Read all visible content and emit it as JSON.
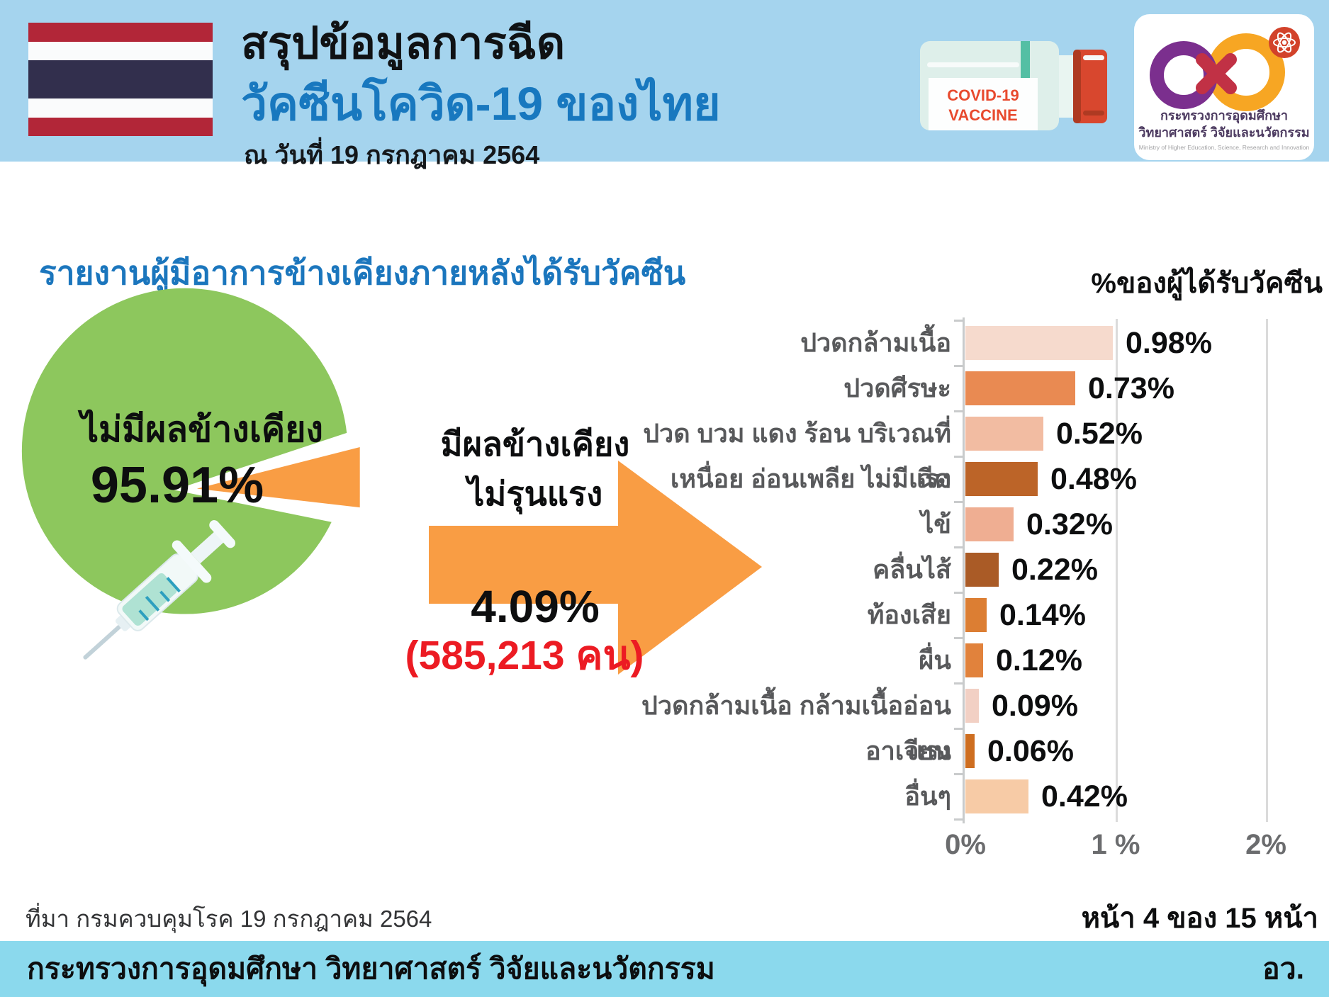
{
  "header": {
    "title_line1": "สรุปข้อมูลการฉีด",
    "title_line2": "วัคซีนโควิด-19 ของไทย",
    "date_line": "ณ วันที่ 19 กรกฎาคม 2564",
    "vial_label_line1": "COVID-19",
    "vial_label_line2": "VACCINE",
    "logo": {
      "thai_line1": "กระทรวงการอุดมศึกษา",
      "thai_line2": "วิทยาศาสตร์ วิจัยและนวัตกรรม",
      "english_line": "Ministry of Higher Education, Science, Research and Innovation"
    }
  },
  "main": {
    "section_title": "รายงานผู้มีอาการข้างเคียงภายหลังได้รับวัคซีน",
    "pie_block": {
      "no_side_effect_label": "ไม่มีผลข้างเคียง",
      "no_side_effect_value": "95.91%",
      "side_effect_label_line1": "มีผลข้างเคียง",
      "side_effect_label_line2": "ไม่รุนแรง",
      "side_effect_value": "4.09%",
      "side_effect_count": "(585,213 คน)"
    }
  },
  "chart_data": [
    {
      "type": "pie",
      "labels": [
        "ไม่มีผลข้างเคียง",
        "มีผลข้างเคียง ไม่รุนแรง"
      ],
      "values": [
        95.91,
        4.09
      ],
      "value_labels": [
        "95.91%",
        "4.09%"
      ],
      "annotation": "(585,213 คน)",
      "colors": [
        "#8DC75D",
        "#F99D44"
      ]
    },
    {
      "type": "bar",
      "orientation": "horizontal",
      "title": "รายงานผู้มีอาการข้างเคียงภายหลังได้รับวัคซีน",
      "unit_label": "%ของผู้ได้รับวัคซีน",
      "categories": [
        "ปวดกล้ามเนื้อ",
        "ปวดศีรษะ",
        "ปวด บวม แดง ร้อน บริเวณที่ฉีด",
        "เหนื่อย อ่อนเพลีย ไม่มีแรง",
        "ไข้",
        "คลื่นไส้",
        "ท้องเสีย",
        "ผื่น",
        "ปวดกล้ามเนื้อ กล้ามเนื้ออ่อนแรง",
        "อาเจียน",
        "อื่นๆ"
      ],
      "values": [
        0.98,
        0.73,
        0.52,
        0.48,
        0.32,
        0.22,
        0.14,
        0.12,
        0.09,
        0.06,
        0.42
      ],
      "value_labels": [
        "0.98%",
        "0.73%",
        "0.52%",
        "0.48%",
        "0.32%",
        "0.22%",
        "0.14%",
        "0.12%",
        "0.09%",
        "0.06%",
        "0.42%"
      ],
      "bar_colors": [
        "#F6DACD",
        "#E98A52",
        "#F2BCA2",
        "#BC6428",
        "#EFAE92",
        "#AA5B26",
        "#DC7E33",
        "#E1823C",
        "#F2D0C4",
        "#CE6E20",
        "#F7CBA6"
      ],
      "x_ticks": [
        "0%",
        "1 %",
        "2%"
      ],
      "xlim": [
        0,
        2
      ],
      "grid": true,
      "legend": false
    }
  ],
  "footer": {
    "source": "ที่มา กรมควบคุมโรค 19 กรกฎาคม 2564",
    "page_indicator": "หน้า 4 ของ 15 หน้า",
    "ministry_name": "กระทรวงการอุดมศึกษา วิทยาศาสตร์ วิจัยและนวัตกรรม",
    "ministry_abbr": "อว."
  },
  "colors": {
    "header_bg": "#A5D4EE",
    "footer_bg": "#8BD9ED",
    "title_blue": "#1878BF",
    "pie_green": "#8DC75D",
    "accent_orange": "#F99D44",
    "count_red": "#EC1B23",
    "vial_cap_red": "#D8472E",
    "flag_red": "#B22638",
    "flag_navy": "#322F4D"
  }
}
